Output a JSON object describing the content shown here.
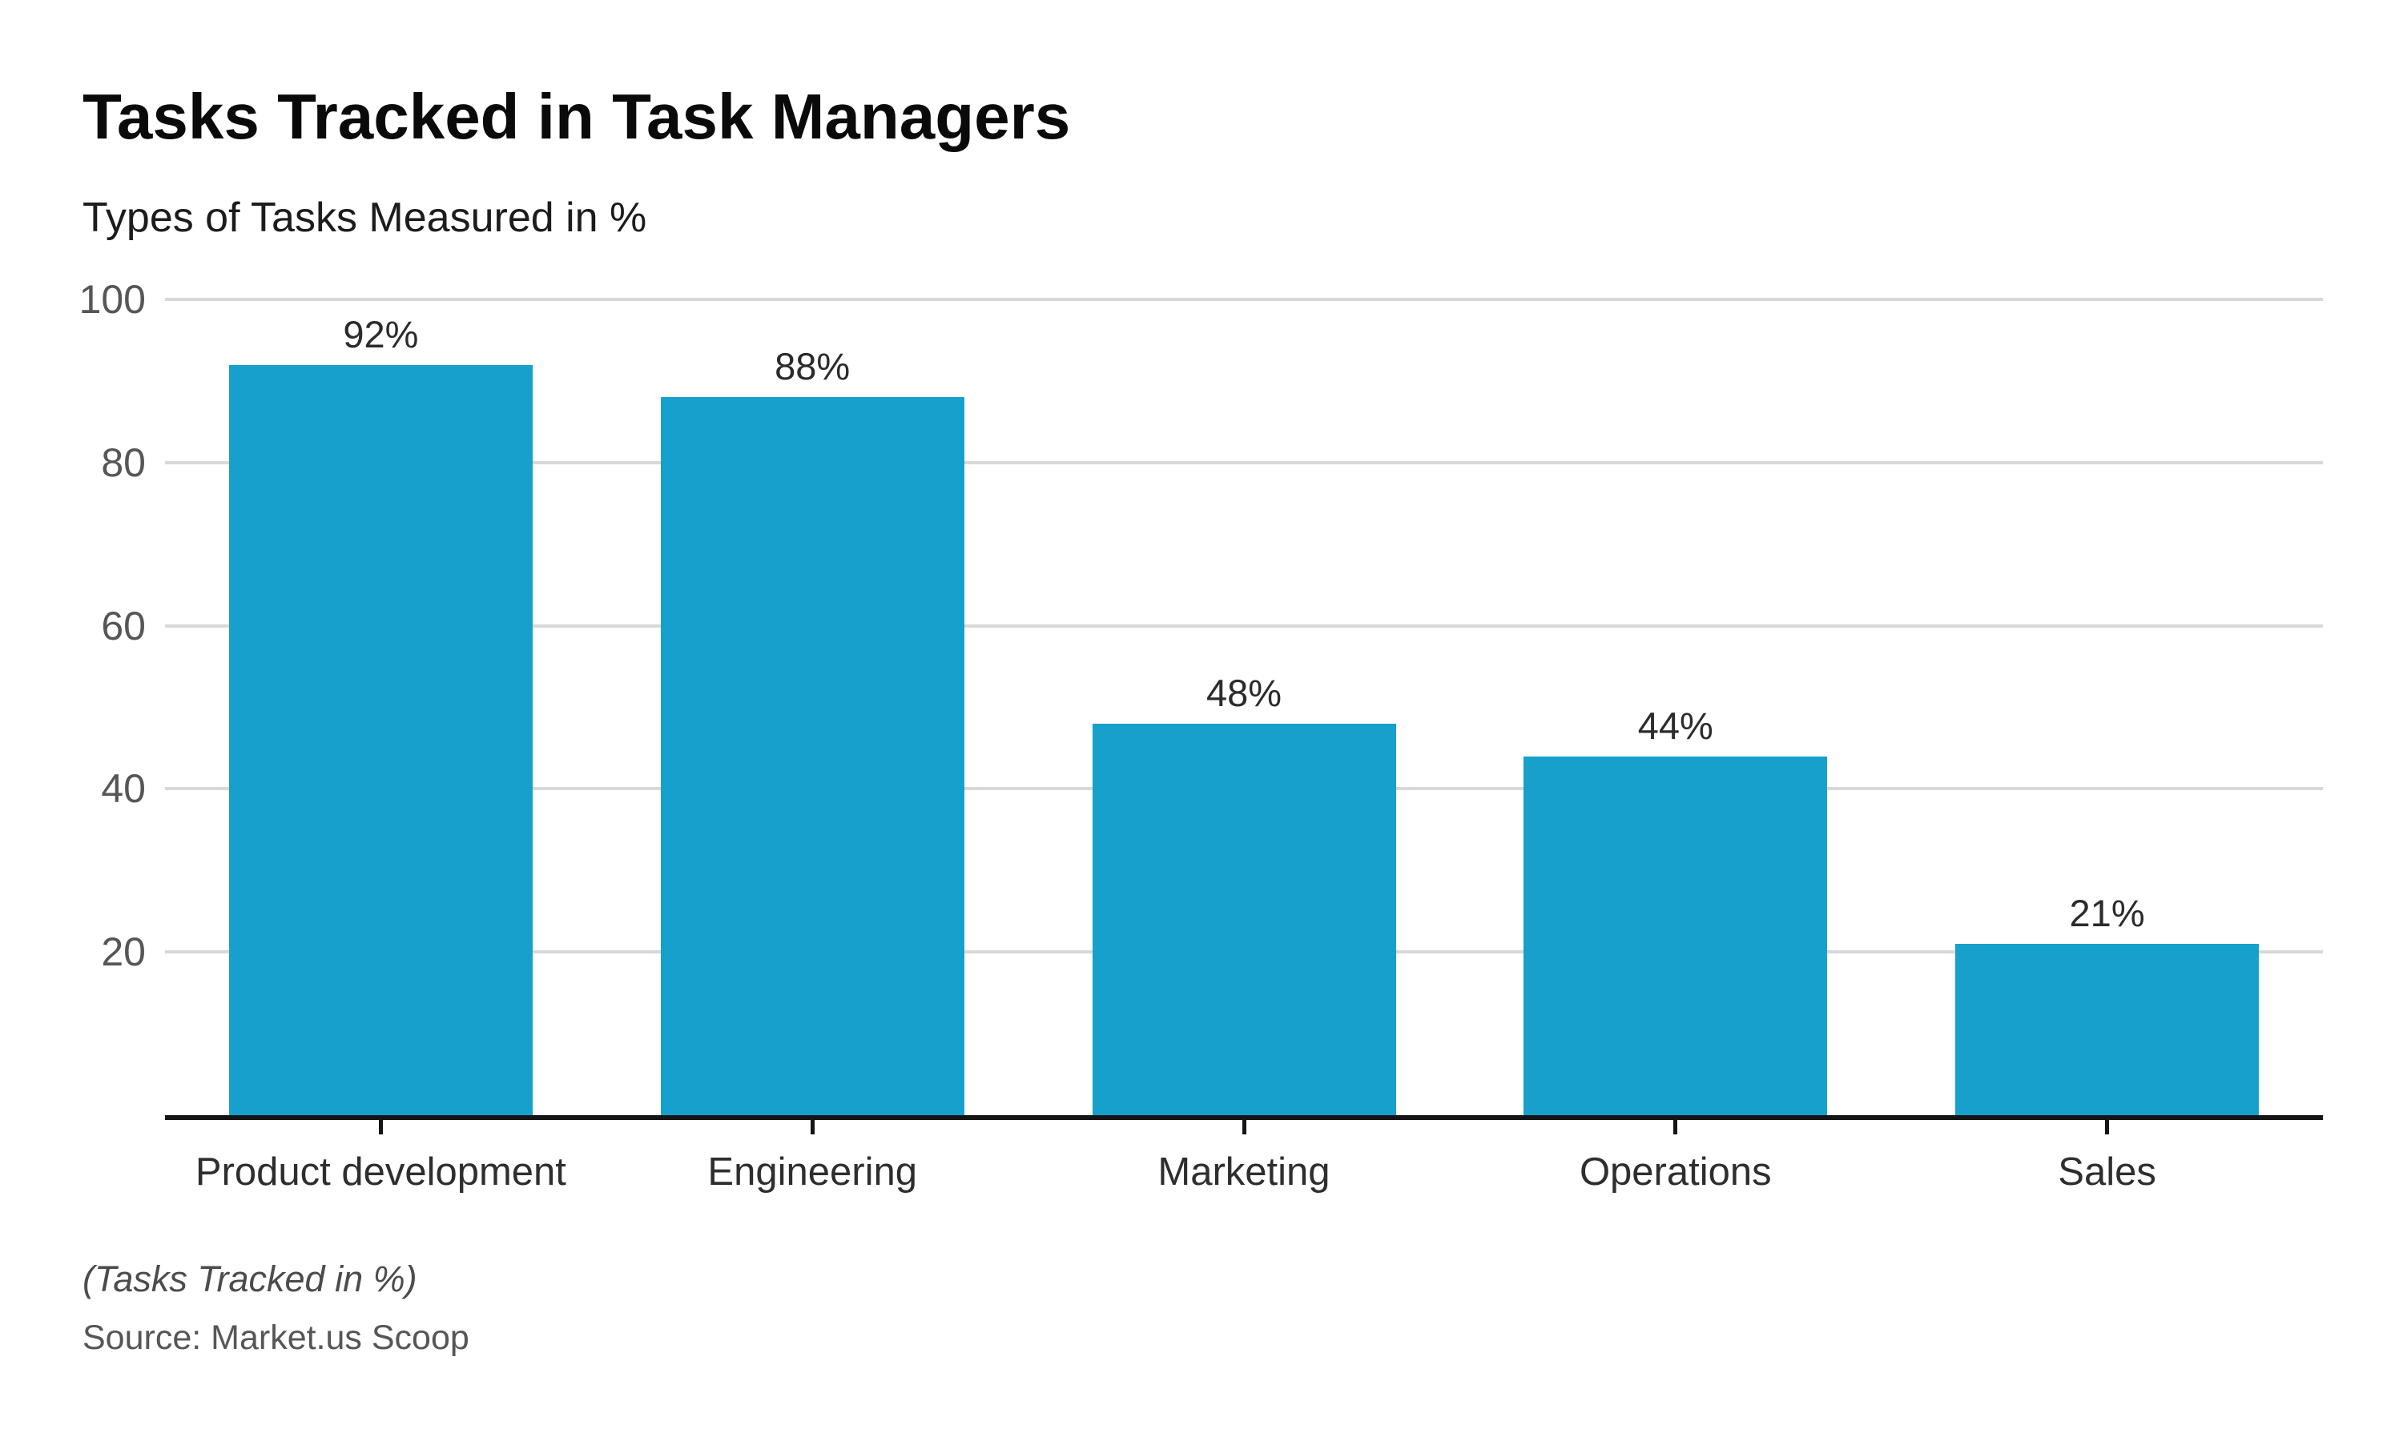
{
  "header": {
    "title": "Tasks Tracked in Task Managers",
    "subtitle": "Types of Tasks Measured in %"
  },
  "footer": {
    "note": "(Tasks Tracked in %)",
    "source": "Source: Market.us Scoop"
  },
  "colors": {
    "bar": "#18A0CC",
    "grid": "#D8D8D8",
    "axis": "#141414",
    "tick_label": "#565656",
    "value_label": "#2B2B2B",
    "background": "#FFFFFF"
  },
  "chart_data": {
    "type": "bar",
    "title": "Tasks Tracked in Task Managers",
    "subtitle": "Types of Tasks Measured in %",
    "categories": [
      "Product development",
      "Engineering",
      "Marketing",
      "Operations",
      "Sales"
    ],
    "values": [
      92,
      88,
      48,
      44,
      21
    ],
    "value_labels": [
      "92%",
      "88%",
      "48%",
      "44%",
      "21%"
    ],
    "xlabel": "",
    "ylabel": "",
    "ylim": [
      0,
      100
    ],
    "yticks": [
      20,
      40,
      60,
      80,
      100
    ],
    "grid": "horizontal-only",
    "legend": "none",
    "bar_color": "#18A0CC",
    "note": "(Tasks Tracked in %)",
    "source": "Source: Market.us Scoop"
  }
}
